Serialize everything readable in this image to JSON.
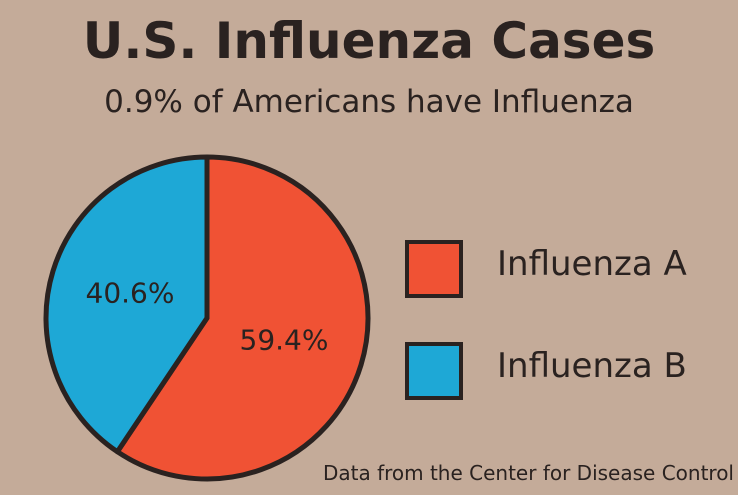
{
  "chart_data": {
    "type": "pie",
    "title": "U.S. Influenza Cases",
    "subtitle": "0.9% of Americans have Influenza",
    "source": "Data from the Center for Disease Control",
    "slices": [
      {
        "name": "Influenza A",
        "value": 59.4,
        "label": "59.4%",
        "color": "#f05234"
      },
      {
        "name": "Influenza B",
        "value": 40.6,
        "label": "40.6%",
        "color": "#1ea8d6"
      }
    ],
    "legend": {
      "placement": "right"
    }
  },
  "colors": {
    "background": "#c4ab99",
    "outline": "#2a2220",
    "text": "#2a2220"
  }
}
